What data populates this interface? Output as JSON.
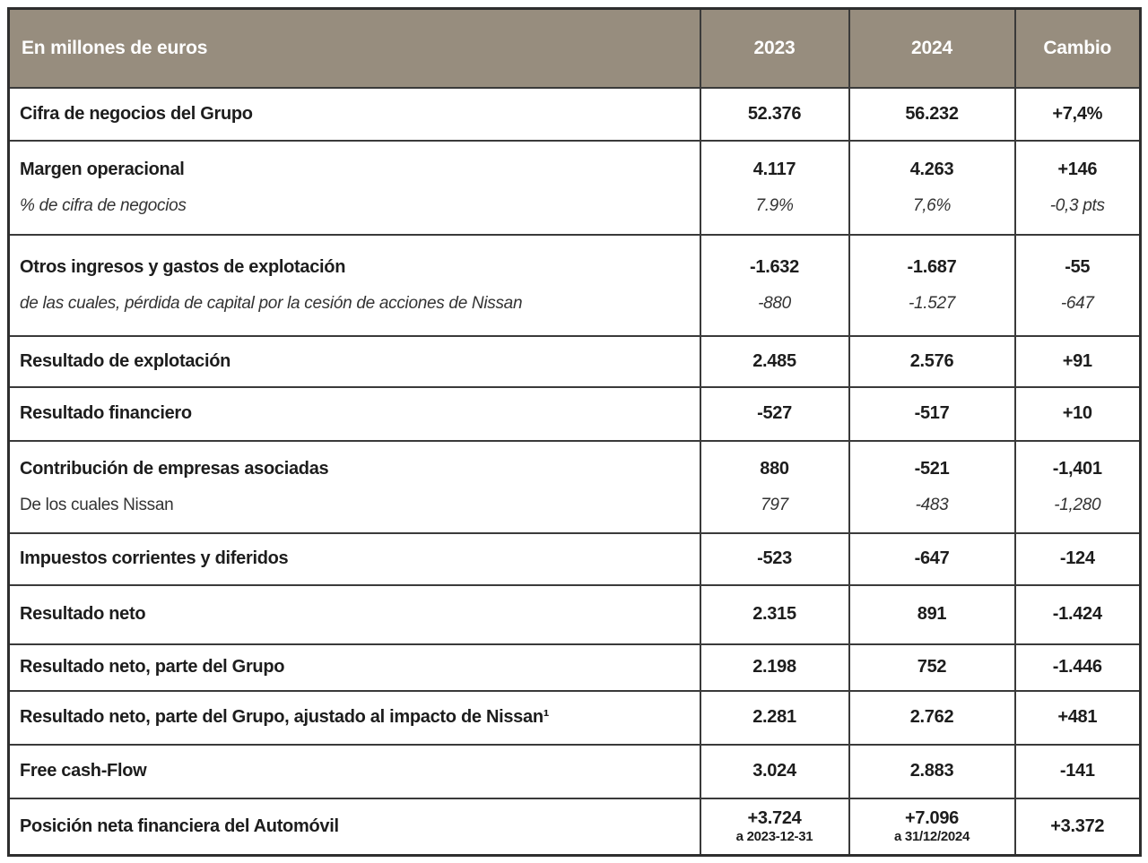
{
  "colors": {
    "header_bg": "#978D7E",
    "header_text": "#FFFFFF",
    "border": "#3A3A3A",
    "body_text": "#1D1D1D"
  },
  "table": {
    "unit_label": "En millones de euros",
    "columns": {
      "y2023": "2023",
      "y2024": "2024",
      "cambio": "Cambio"
    },
    "rows": [
      {
        "label": "Cifra de negocios del Grupo",
        "v2023": "52.376",
        "v2024": "56.232",
        "cambio": "+7,4%"
      },
      {
        "label": "Margen operacional",
        "v2023": "4.117",
        "v2024": "4.263",
        "cambio": "+146",
        "sub": {
          "label": "% de cifra de negocios",
          "v2023": "7.9%",
          "v2024": "7,6%",
          "cambio": "-0,3 pts"
        }
      },
      {
        "label": "Otros ingresos y gastos de explotación",
        "v2023": "-1.632",
        "v2024": "-1.687",
        "cambio": "-55",
        "sub": {
          "label": "de las cuales, pérdida de capital por la cesión de acciones de Nissan",
          "v2023": "-880",
          "v2024": "-1.527",
          "cambio": "-647"
        }
      },
      {
        "label": "Resultado de explotación",
        "v2023": "2.485",
        "v2024": "2.576",
        "cambio": "+91"
      },
      {
        "label": "Resultado financiero",
        "v2023": "-527",
        "v2024": "-517",
        "cambio": "+10"
      },
      {
        "label": "Contribución de empresas asociadas",
        "v2023": "880",
        "v2024": "-521",
        "cambio": "-1,401",
        "sub": {
          "label": "De los cuales Nissan",
          "v2023": "797",
          "v2024": "-483",
          "cambio": "-1,280"
        }
      },
      {
        "label": "Impuestos corrientes y diferidos",
        "v2023": "-523",
        "v2024": "-647",
        "cambio": "-124"
      },
      {
        "label": "Resultado neto",
        "v2023": "2.315",
        "v2024": "891",
        "cambio": "-1.424"
      },
      {
        "label": "Resultado neto, parte del Grupo",
        "v2023": "2.198",
        "v2024": "752",
        "cambio": "-1.446"
      },
      {
        "label": "Resultado neto, parte del Grupo, ajustado al impacto de Nissan¹",
        "v2023": "2.281",
        "v2024": "2.762",
        "cambio": "+481"
      },
      {
        "label": "Free cash-Flow",
        "v2023": "3.024",
        "v2024": "2.883",
        "cambio": "-141"
      },
      {
        "label": "Posición neta financiera del Automóvil",
        "v2023": "+3.724",
        "v2023_note": "a 2023-12-31",
        "v2024": "+7.096",
        "v2024_note": "a 31/12/2024",
        "cambio": "+3.372"
      }
    ]
  }
}
